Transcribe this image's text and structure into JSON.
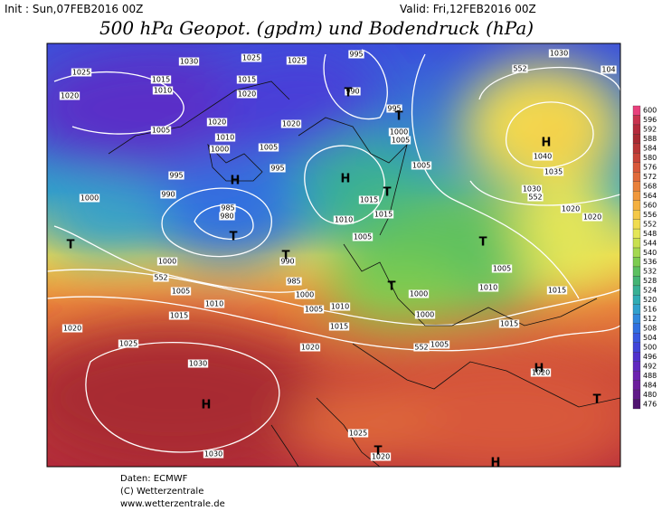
{
  "header": {
    "init": "Init : Sun,07FEB2016 00Z",
    "valid": "Valid: Fri,12FEB2016 00Z",
    "title": "500 hPa Geopot. (gpdm) und Bodendruck (hPa)"
  },
  "map": {
    "isobar_labels": [
      "1025",
      "1015",
      "1010",
      "1020",
      "1030",
      "1025",
      "1025",
      "1015",
      "1020",
      "995",
      "990",
      "995",
      "1000",
      "1005",
      "1020",
      "1020",
      "1005",
      "1010",
      "1005",
      "1000",
      "995",
      "995",
      "990",
      "1000",
      "985",
      "980",
      "1015",
      "1015",
      "1010",
      "1005",
      "1005",
      "990",
      "985",
      "1000",
      "1005",
      "1010",
      "1015",
      "1000",
      "1010",
      "1005",
      "1015",
      "1020",
      "1020",
      "1025",
      "1030",
      "1030",
      "1005",
      "1010",
      "1000",
      "1000",
      "1005",
      "1015",
      "1015",
      "1020",
      "1020",
      "1020",
      "1025",
      "1020",
      "1035",
      "1030",
      "1040",
      "1030",
      "104",
      "552",
      "552",
      "552",
      "552"
    ],
    "pressure_centers": [
      "H",
      "H",
      "H",
      "H",
      "H",
      "H",
      "T",
      "T",
      "T",
      "T",
      "T",
      "T",
      "T",
      "T",
      "T",
      "T"
    ]
  },
  "colorbar": {
    "levels": [
      600,
      596,
      592,
      588,
      584,
      580,
      576,
      572,
      568,
      564,
      560,
      556,
      552,
      548,
      544,
      540,
      536,
      532,
      528,
      524,
      520,
      516,
      512,
      508,
      504,
      500,
      496,
      492,
      488,
      484,
      480,
      476
    ],
    "colors": [
      "#e8407c",
      "#c8324e",
      "#b42a3c",
      "#a82a32",
      "#b83636",
      "#c84438",
      "#d8583a",
      "#e06a3a",
      "#e8803a",
      "#f0983c",
      "#f4b040",
      "#f4c848",
      "#f0dc50",
      "#e4e658",
      "#c8e050",
      "#a4d850",
      "#7ccc50",
      "#5cc060",
      "#44b474",
      "#38b094",
      "#30acb4",
      "#30a0cc",
      "#3088dc",
      "#3070e0",
      "#3858e0",
      "#4044d8",
      "#5030cc",
      "#6028c0",
      "#6c22b0",
      "#6c1e9c",
      "#601a88",
      "#501470"
    ]
  },
  "footer": {
    "lines": [
      "Daten: ECMWF",
      "(C) Wetterzentrale",
      "www.wetterzentrale.de"
    ]
  }
}
